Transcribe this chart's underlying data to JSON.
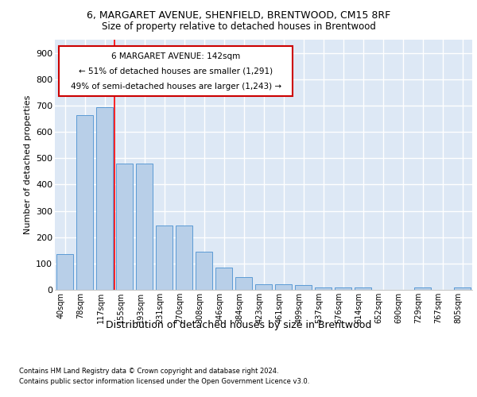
{
  "title1": "6, MARGARET AVENUE, SHENFIELD, BRENTWOOD, CM15 8RF",
  "title2": "Size of property relative to detached houses in Brentwood",
  "xlabel": "Distribution of detached houses by size in Brentwood",
  "ylabel": "Number of detached properties",
  "categories": [
    "40sqm",
    "78sqm",
    "117sqm",
    "155sqm",
    "193sqm",
    "231sqm",
    "270sqm",
    "308sqm",
    "346sqm",
    "384sqm",
    "423sqm",
    "461sqm",
    "499sqm",
    "537sqm",
    "576sqm",
    "614sqm",
    "652sqm",
    "690sqm",
    "729sqm",
    "767sqm",
    "805sqm"
  ],
  "values": [
    135,
    663,
    695,
    480,
    480,
    245,
    245,
    145,
    85,
    47,
    22,
    20,
    17,
    10,
    9,
    8,
    1,
    0,
    8,
    0,
    8
  ],
  "bar_color": "#b8cfe8",
  "bar_edge_color": "#5b9bd5",
  "vline_index": 3,
  "annotation_text1": "6 MARGARET AVENUE: 142sqm",
  "annotation_text2": "← 51% of detached houses are smaller (1,291)",
  "annotation_text3": "49% of semi-detached houses are larger (1,243) →",
  "footnote1": "Contains HM Land Registry data © Crown copyright and database right 2024.",
  "footnote2": "Contains public sector information licensed under the Open Government Licence v3.0.",
  "ylim": [
    0,
    950
  ],
  "yticks": [
    0,
    100,
    200,
    300,
    400,
    500,
    600,
    700,
    800,
    900
  ],
  "bg_color": "#dde8f5",
  "grid_color": "#ffffff",
  "box_color": "#cc0000"
}
